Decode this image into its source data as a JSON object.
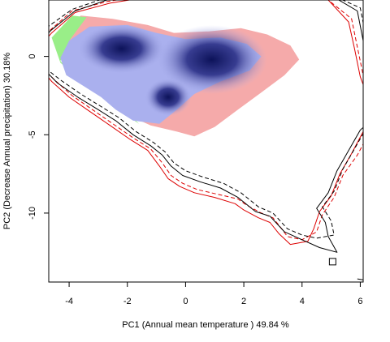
{
  "chart_data": {
    "type": "scatter",
    "title": "",
    "xlabel": "PC1 (Annual mean temperature ) 49.84 %",
    "ylabel": "PC2 (Decrease Annual precipitation) 30.18%",
    "xlim": [
      -4.7,
      6.1
    ],
    "ylim": [
      -14.4,
      3.6
    ],
    "xticks": [
      -4,
      -2,
      0,
      2,
      4,
      6
    ],
    "yticks": [
      0,
      -5,
      -10
    ],
    "grid": false,
    "legend": "none",
    "colors": {
      "density_fill": "#f5aaaa",
      "overlap_green": "#99ee88",
      "density_blue_light": "#aab0ee",
      "density_blue_dark": "#0c1259",
      "contour_red": "#dd0000",
      "contour_black": "#000000"
    },
    "series": [
      {
        "style": "red-solid",
        "points": [
          [
            -5.3,
            0.0
          ],
          [
            -4.6,
            1.5
          ],
          [
            -3.8,
            2.8
          ],
          [
            -2.6,
            3.4
          ],
          [
            -1.6,
            3.7
          ],
          [
            0.5,
            3.9
          ],
          [
            2.8,
            3.9
          ],
          [
            4.8,
            3.8
          ],
          [
            5.6,
            2.2
          ],
          [
            5.8,
            0.5
          ],
          [
            6.0,
            -1.3
          ],
          [
            6.3,
            -2.8
          ],
          [
            6.6,
            -3.9
          ],
          [
            6.1,
            -4.8
          ],
          [
            5.7,
            -6.2
          ],
          [
            5.3,
            -7.5
          ],
          [
            5.0,
            -8.9
          ],
          [
            4.6,
            -9.9
          ],
          [
            4.4,
            -11.0
          ],
          [
            4.2,
            -11.8
          ],
          [
            3.6,
            -12.0
          ],
          [
            3.2,
            -11.3
          ],
          [
            2.9,
            -10.6
          ],
          [
            2.5,
            -10.3
          ],
          [
            2.0,
            -9.8
          ],
          [
            1.7,
            -9.4
          ],
          [
            1.0,
            -9.0
          ],
          [
            0.3,
            -8.7
          ],
          [
            -0.2,
            -8.3
          ],
          [
            -0.6,
            -7.8
          ],
          [
            -0.9,
            -7.0
          ],
          [
            -1.3,
            -6.0
          ],
          [
            -1.9,
            -5.3
          ],
          [
            -2.6,
            -4.4
          ],
          [
            -3.3,
            -3.5
          ],
          [
            -4.0,
            -2.6
          ],
          [
            -4.6,
            -1.6
          ],
          [
            -5.3,
            0.0
          ]
        ]
      },
      {
        "style": "red-dashed",
        "points": [
          [
            -5.5,
            0.3
          ],
          [
            -4.7,
            1.6
          ],
          [
            -3.9,
            2.9
          ],
          [
            -2.7,
            3.5
          ],
          [
            -1.7,
            3.8
          ],
          [
            0.4,
            4.0
          ],
          [
            2.7,
            4.0
          ],
          [
            4.7,
            3.9
          ],
          [
            5.7,
            2.4
          ],
          [
            5.9,
            0.6
          ],
          [
            6.1,
            -1.2
          ],
          [
            6.4,
            -2.7
          ],
          [
            6.8,
            -3.8
          ],
          [
            6.3,
            -4.9
          ],
          [
            5.9,
            -6.3
          ],
          [
            5.4,
            -7.6
          ],
          [
            5.1,
            -9.0
          ],
          [
            4.7,
            -10.1
          ],
          [
            4.5,
            -11.2
          ],
          [
            4.0,
            -11.7
          ],
          [
            3.5,
            -11.5
          ],
          [
            3.3,
            -11.0
          ],
          [
            3.0,
            -10.3
          ],
          [
            2.6,
            -10.0
          ],
          [
            2.1,
            -9.5
          ],
          [
            1.8,
            -9.1
          ],
          [
            1.1,
            -8.8
          ],
          [
            0.4,
            -8.5
          ],
          [
            -0.1,
            -8.1
          ],
          [
            -0.5,
            -7.6
          ],
          [
            -0.8,
            -6.8
          ],
          [
            -1.2,
            -5.9
          ],
          [
            -1.8,
            -5.2
          ],
          [
            -2.5,
            -4.3
          ],
          [
            -3.2,
            -3.4
          ],
          [
            -3.9,
            -2.5
          ],
          [
            -4.5,
            -1.5
          ],
          [
            -5.5,
            0.3
          ]
        ]
      },
      {
        "style": "black-solid",
        "points": [
          [
            -5.4,
            0.2
          ],
          [
            -4.6,
            1.7
          ],
          [
            -3.8,
            2.9
          ],
          [
            -2.7,
            3.6
          ],
          [
            -1.6,
            3.9
          ],
          [
            0.6,
            4.1
          ],
          [
            2.9,
            4.2
          ],
          [
            4.9,
            4.0
          ],
          [
            5.9,
            2.9
          ],
          [
            6.1,
            1.0
          ],
          [
            6.3,
            -0.8
          ],
          [
            6.5,
            -2.4
          ],
          [
            6.6,
            -3.7
          ],
          [
            6.0,
            -4.7
          ],
          [
            5.6,
            -6.0
          ],
          [
            5.2,
            -7.3
          ],
          [
            4.9,
            -8.7
          ],
          [
            4.5,
            -9.7
          ],
          [
            4.8,
            -10.6
          ],
          [
            4.9,
            -11.5
          ],
          [
            5.2,
            -12.5
          ],
          [
            4.6,
            -12.2
          ],
          [
            4.0,
            -11.7
          ],
          [
            3.4,
            -11.2
          ],
          [
            2.9,
            -10.2
          ],
          [
            2.4,
            -9.9
          ],
          [
            1.8,
            -9.0
          ],
          [
            1.2,
            -8.4
          ],
          [
            0.5,
            -8.0
          ],
          [
            -0.1,
            -7.6
          ],
          [
            -0.5,
            -7.0
          ],
          [
            -0.8,
            -6.3
          ],
          [
            -1.2,
            -5.7
          ],
          [
            -1.8,
            -5.0
          ],
          [
            -2.4,
            -4.1
          ],
          [
            -3.0,
            -3.4
          ],
          [
            -3.7,
            -2.6
          ],
          [
            -4.4,
            -1.7
          ],
          [
            -5.4,
            0.2
          ]
        ]
      },
      {
        "style": "black-dashed",
        "points": [
          [
            -5.6,
            0.4
          ],
          [
            -4.8,
            1.8
          ],
          [
            -3.9,
            3.0
          ],
          [
            -2.8,
            3.7
          ],
          [
            -1.7,
            4.0
          ],
          [
            0.5,
            4.2
          ],
          [
            2.8,
            4.3
          ],
          [
            4.8,
            4.1
          ],
          [
            6.0,
            3.1
          ],
          [
            6.2,
            1.2
          ],
          [
            6.4,
            -0.6
          ],
          [
            6.6,
            -2.2
          ],
          [
            6.8,
            -3.5
          ],
          [
            6.2,
            -4.6
          ],
          [
            5.8,
            -5.9
          ],
          [
            5.4,
            -7.2
          ],
          [
            5.1,
            -8.6
          ],
          [
            4.7,
            -9.6
          ],
          [
            5.0,
            -10.5
          ],
          [
            5.1,
            -11.4
          ],
          [
            4.5,
            -11.6
          ],
          [
            4.0,
            -11.4
          ],
          [
            3.5,
            -11.0
          ],
          [
            3.0,
            -10.0
          ],
          [
            2.5,
            -9.6
          ],
          [
            1.9,
            -8.7
          ],
          [
            1.3,
            -8.1
          ],
          [
            0.6,
            -7.7
          ],
          [
            0.0,
            -7.3
          ],
          [
            -0.4,
            -6.8
          ],
          [
            -0.7,
            -6.1
          ],
          [
            -1.1,
            -5.5
          ],
          [
            -1.7,
            -4.8
          ],
          [
            -2.3,
            -3.9
          ],
          [
            -2.9,
            -3.2
          ],
          [
            -3.6,
            -2.4
          ],
          [
            -4.3,
            -1.5
          ],
          [
            -5.6,
            0.4
          ]
        ]
      }
    ],
    "density_regions": {
      "red_region": [
        [
          -4.1,
          1.8
        ],
        [
          -3.6,
          2.6
        ],
        [
          -2.5,
          2.4
        ],
        [
          -1.3,
          2.0
        ],
        [
          -0.4,
          1.5
        ],
        [
          0.8,
          1.6
        ],
        [
          1.9,
          1.8
        ],
        [
          2.8,
          1.4
        ],
        [
          3.6,
          0.7
        ],
        [
          3.9,
          -0.2
        ],
        [
          3.4,
          -1.2
        ],
        [
          2.6,
          -2.3
        ],
        [
          1.8,
          -3.4
        ],
        [
          1.0,
          -4.5
        ],
        [
          0.3,
          -5.1
        ],
        [
          -0.3,
          -4.8
        ],
        [
          -1.2,
          -4.4
        ],
        [
          -1.8,
          -3.9
        ],
        [
          -2.4,
          -3.0
        ],
        [
          -3.4,
          -2.0
        ],
        [
          -4.1,
          -0.6
        ],
        [
          -4.4,
          0.8
        ]
      ],
      "green_region": [
        [
          -4.6,
          1.2
        ],
        [
          -3.9,
          2.6
        ],
        [
          -3.4,
          2.5
        ],
        [
          -4.0,
          1.0
        ],
        [
          -4.3,
          -0.3
        ],
        [
          -3.6,
          -1.6
        ],
        [
          -2.6,
          -2.8
        ],
        [
          -2.0,
          -3.8
        ],
        [
          -1.6,
          -4.3
        ],
        [
          -2.1,
          -3.4
        ],
        [
          -2.9,
          -2.3
        ],
        [
          -3.7,
          -1.4
        ],
        [
          -4.3,
          -0.4
        ]
      ],
      "blue_region": [
        [
          -4.0,
          1.0
        ],
        [
          -3.3,
          1.9
        ],
        [
          -2.0,
          2.0
        ],
        [
          -1.0,
          1.5
        ],
        [
          0.0,
          1.1
        ],
        [
          1.2,
          1.2
        ],
        [
          2.1,
          0.8
        ],
        [
          2.6,
          0.0
        ],
        [
          2.2,
          -0.9
        ],
        [
          1.2,
          -1.6
        ],
        [
          0.3,
          -2.4
        ],
        [
          -0.3,
          -3.4
        ],
        [
          -0.9,
          -4.3
        ],
        [
          -1.8,
          -4.1
        ],
        [
          -2.4,
          -3.4
        ],
        [
          -2.9,
          -2.6
        ],
        [
          -3.5,
          -1.9
        ],
        [
          -4.1,
          -1.2
        ],
        [
          -4.3,
          -0.1
        ]
      ],
      "dense_cores": [
        {
          "x": -2.2,
          "y": 0.5,
          "rx": 1.5,
          "ry": 1.6
        },
        {
          "x": 0.9,
          "y": -0.2,
          "rx": 1.9,
          "ry": 2.2
        },
        {
          "x": -0.6,
          "y": -2.6,
          "rx": 0.8,
          "ry": 1.2
        }
      ]
    },
    "marker": {
      "shape": "square",
      "x": 5.05,
      "y": -13.1
    },
    "edge_fragment": [
      [
        5.9,
        -14.2
      ],
      [
        6.2,
        -14.3
      ]
    ]
  }
}
